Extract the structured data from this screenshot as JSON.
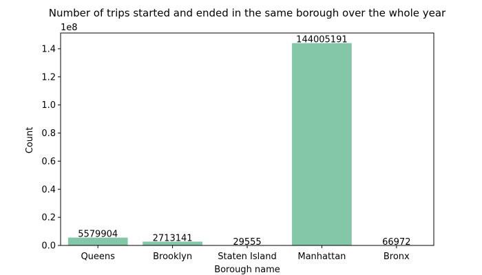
{
  "chart_data": {
    "type": "bar",
    "title": "Number of trips started and ended in the same borough over the whole year",
    "xlabel": "Borough name",
    "ylabel": "Count",
    "categories": [
      "Queens",
      "Brooklyn",
      "Staten Island",
      "Manhattan",
      "Bronx"
    ],
    "values": [
      5579904,
      2713141,
      29555,
      144005191,
      66972
    ],
    "data_labels": [
      "5579904",
      "2713141",
      "29555",
      "144005191",
      "66972"
    ],
    "y_scale_label": "1e8",
    "ylim": [
      0,
      151205450
    ],
    "y_ticks": [
      0,
      20000000,
      40000000,
      60000000,
      80000000,
      100000000,
      120000000,
      140000000
    ],
    "y_tick_labels": [
      "0.0",
      "0.2",
      "0.4",
      "0.6",
      "0.8",
      "1.0",
      "1.2",
      "1.4"
    ],
    "bar_color": "#84c7a8",
    "grid": false,
    "legend": "none"
  }
}
